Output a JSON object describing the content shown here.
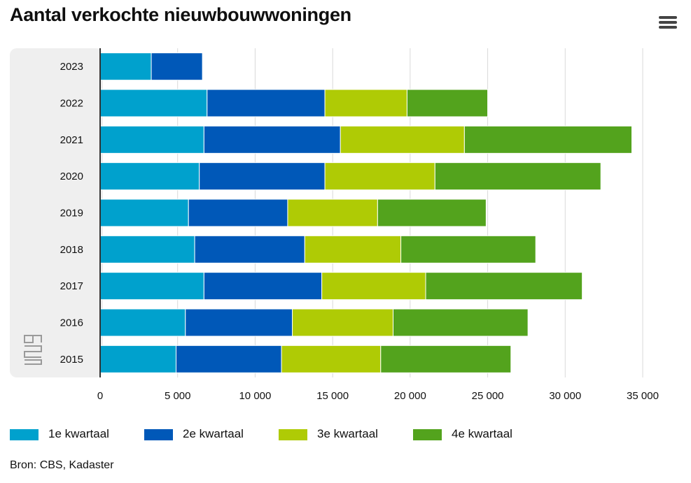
{
  "header": {
    "title": "Aantal verkochte nieuwbouwwoningen",
    "menu_icon": "hamburger-menu-icon"
  },
  "chart_data": {
    "type": "bar",
    "orientation": "horizontal",
    "stacked": true,
    "categories": [
      "2023",
      "2022",
      "2021",
      "2020",
      "2019",
      "2018",
      "2017",
      "2016",
      "2015"
    ],
    "series": [
      {
        "name": "1e kwartaal",
        "color": "#00a1cd",
        "values": [
          3300,
          6900,
          6700,
          6400,
          5700,
          6100,
          6700,
          5500,
          4900
        ]
      },
      {
        "name": "2e kwartaal",
        "color": "#0058b8",
        "values": [
          3300,
          7600,
          8800,
          8100,
          6400,
          7100,
          7600,
          6900,
          6800
        ]
      },
      {
        "name": "3e kwartaal",
        "color": "#afcb05",
        "values": [
          0,
          5300,
          8000,
          7100,
          5800,
          6200,
          6700,
          6500,
          6400
        ]
      },
      {
        "name": "4e kwartaal",
        "color": "#53a31d",
        "values": [
          0,
          5200,
          10800,
          10700,
          7000,
          8700,
          10100,
          8700,
          8400
        ]
      }
    ],
    "xlim": [
      0,
      35000
    ],
    "xticks": [
      0,
      5000,
      10000,
      15000,
      20000,
      25000,
      30000,
      35000
    ],
    "xtick_labels": [
      "0",
      "5 000",
      "10 000",
      "15 000",
      "20 000",
      "25 000",
      "30 000",
      "35 000"
    ],
    "grid": true,
    "legend_position": "bottom-left"
  },
  "logo": {
    "text": "cbs",
    "icon": "cbs-logo-icon"
  },
  "footer": {
    "source": "Bron: CBS, Kadaster"
  }
}
